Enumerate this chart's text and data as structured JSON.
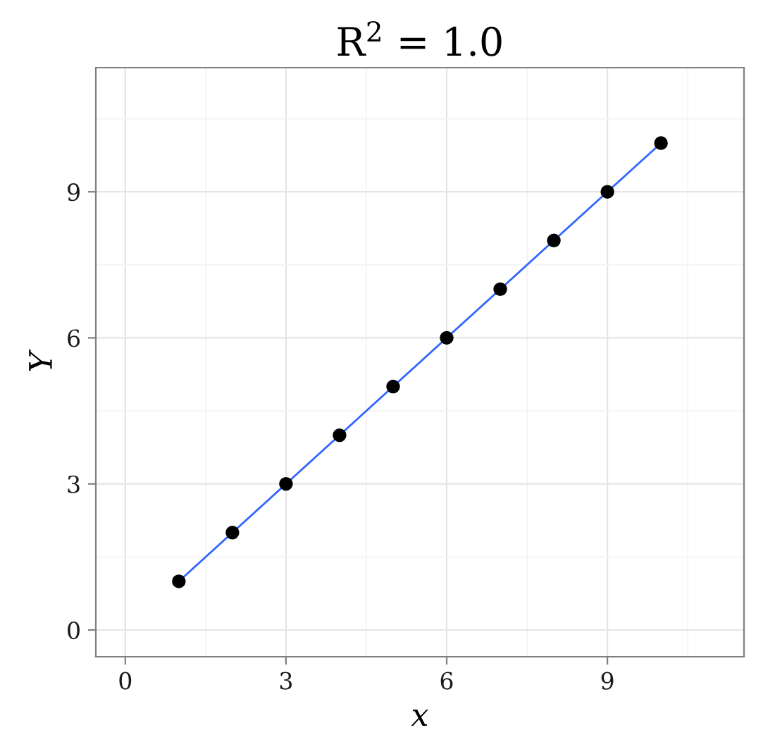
{
  "chart_data": {
    "type": "scatter",
    "title": "R$^{2}$ = 1.0",
    "xlabel": "x",
    "ylabel": "Y",
    "x": [
      1,
      2,
      3,
      4,
      5,
      6,
      7,
      8,
      9,
      10
    ],
    "series": [
      {
        "type": "line",
        "color": "#3366ff",
        "x": [
          1,
          10
        ],
        "values": [
          1,
          10
        ],
        "marker": "none",
        "line_style": "solid"
      },
      {
        "color": "#000000",
        "values": [
          1,
          2,
          3,
          4,
          5,
          6,
          7,
          8,
          9,
          10
        ],
        "marker": "circle"
      }
    ],
    "xlim": [
      -0.55,
      11.55
    ],
    "ylim": [
      -0.55,
      11.55
    ],
    "xticks": [
      0,
      3,
      6,
      9
    ],
    "yticks": [
      0,
      3,
      6,
      9
    ],
    "grid": true
  }
}
